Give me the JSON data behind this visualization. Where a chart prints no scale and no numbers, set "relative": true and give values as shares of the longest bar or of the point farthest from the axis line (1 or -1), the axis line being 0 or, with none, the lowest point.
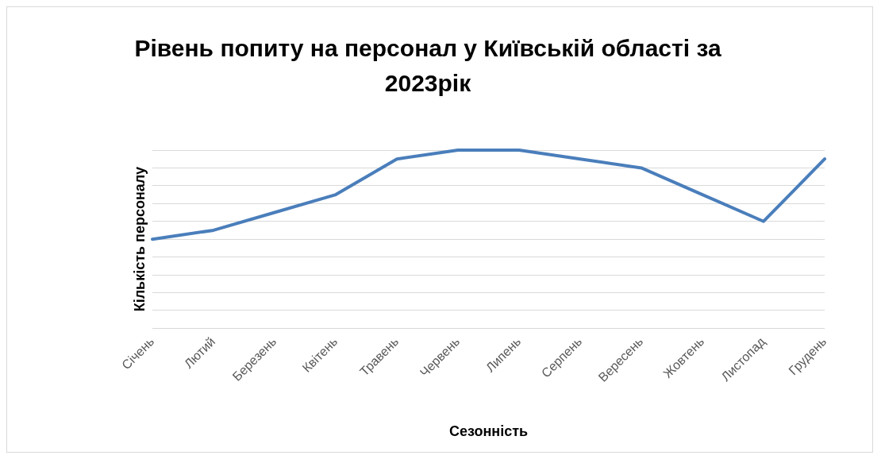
{
  "chart_data": {
    "type": "line",
    "title": "Рівень попиту на персонал у Київській області за 2023рік",
    "xlabel": "Сезонність",
    "ylabel": "Кількість персоналу",
    "relative": true,
    "grid": "y",
    "legend": false,
    "marker": "none",
    "line_style": "solid",
    "categories": [
      "Січень",
      "Лютий",
      "Березень",
      "Квітень",
      "Травень",
      "Червень",
      "Липень",
      "Серпень",
      "Вересень",
      "Жовтень",
      "Листопад",
      "Грудень"
    ],
    "series": [
      {
        "color": "#4a7ebb",
        "values": [
          0.5,
          0.55,
          0.65,
          0.75,
          0.95,
          1,
          1,
          0.95,
          0.9,
          0.75,
          0.6,
          0.95
        ]
      }
    ]
  }
}
